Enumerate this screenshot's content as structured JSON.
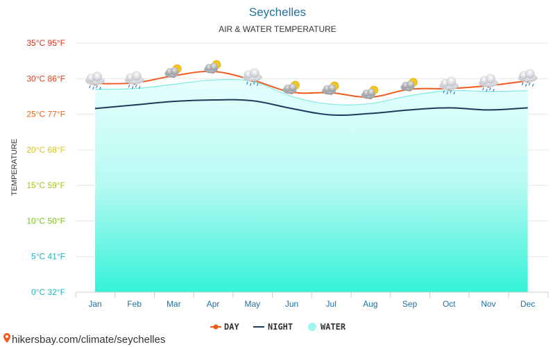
{
  "chart_data": {
    "type": "line",
    "title": "Seychelles",
    "subtitle": "AIR & WATER TEMPERATURE",
    "ylabel": "TEMPERATURE",
    "categories": [
      "Jan",
      "Feb",
      "Mar",
      "Apr",
      "May",
      "Jun",
      "Jul",
      "Aug",
      "Sep",
      "Oct",
      "Nov",
      "Dec"
    ],
    "yticks": [
      {
        "value": 0,
        "label": "0°C 32°F",
        "color": "#1ab3c4"
      },
      {
        "value": 5,
        "label": "5°C 41°F",
        "color": "#1ab3c4"
      },
      {
        "value": 10,
        "label": "10°C 50°F",
        "color": "#7cc41a"
      },
      {
        "value": 15,
        "label": "15°C 59°F",
        "color": "#a8c41a"
      },
      {
        "value": 20,
        "label": "20°C 68°F",
        "color": "#d8c41a"
      },
      {
        "value": 25,
        "label": "25°C 77°F",
        "color": "#e06a1a"
      },
      {
        "value": 30,
        "label": "30°C 86°F",
        "color": "#e0401a"
      },
      {
        "value": 35,
        "label": "35°C 95°F",
        "color": "#e0301a"
      }
    ],
    "ylim": [
      0,
      35
    ],
    "grid": true,
    "legend_position": "bottom",
    "series": [
      {
        "name": "DAY",
        "color": "#f05a1e",
        "values": [
          29.3,
          29.4,
          30.4,
          31.0,
          29.8,
          28.1,
          28.0,
          27.4,
          28.5,
          28.6,
          29.0,
          29.7
        ]
      },
      {
        "name": "NIGHT",
        "color": "#1c3a5c",
        "values": [
          25.8,
          26.3,
          26.8,
          27.0,
          26.9,
          25.8,
          24.9,
          25.1,
          25.6,
          25.9,
          25.6,
          25.9
        ]
      },
      {
        "name": "WATER",
        "color": "#9ff5ef",
        "values": [
          28.5,
          28.6,
          29.2,
          29.8,
          29.6,
          27.5,
          26.4,
          26.5,
          27.6,
          28.3,
          28.2,
          28.3
        ]
      }
    ],
    "weather_icons": [
      "cloud-rain-icon",
      "cloud-rain-icon",
      "sun-cloud-icon",
      "sun-cloud-icon",
      "cloud-rain-icon",
      "sun-cloud-icon",
      "sun-cloud-icon",
      "sun-cloud-icon",
      "sun-cloud-icon",
      "cloud-rain-icon",
      "cloud-rain-icon",
      "cloud-rain-icon"
    ]
  },
  "legend": {
    "day": "DAY",
    "night": "NIGHT",
    "water": "WATER"
  },
  "source": {
    "text": "hikersbay.com/climate/seychelles",
    "icon": "location-pin-icon"
  }
}
